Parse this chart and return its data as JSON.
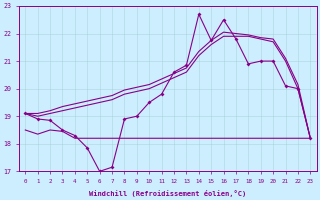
{
  "xlabel": "Windchill (Refroidissement éolien,°C)",
  "bg_color": "#cceeff",
  "line_color": "#880088",
  "xlim": [
    -0.5,
    23.5
  ],
  "ylim": [
    17,
    23
  ],
  "yticks": [
    17,
    18,
    19,
    20,
    21,
    22,
    23
  ],
  "xticks": [
    0,
    1,
    2,
    3,
    4,
    5,
    6,
    7,
    8,
    9,
    10,
    11,
    12,
    13,
    14,
    15,
    16,
    17,
    18,
    19,
    20,
    21,
    22,
    23
  ],
  "s1_x": [
    0,
    1,
    2,
    3,
    4,
    5,
    6,
    7,
    8,
    9,
    10,
    11,
    12,
    13,
    14,
    15,
    16,
    17,
    18,
    19,
    20,
    21,
    22,
    23
  ],
  "s1_y": [
    19.1,
    18.9,
    18.85,
    18.5,
    18.3,
    17.85,
    17.0,
    17.15,
    18.9,
    19.0,
    19.5,
    19.8,
    20.6,
    20.85,
    22.7,
    21.75,
    22.5,
    21.8,
    20.9,
    21.0,
    21.0,
    20.1,
    20.0,
    18.2
  ],
  "s2_x": [
    0,
    1,
    2,
    3,
    4,
    5,
    6,
    7,
    8,
    9,
    10,
    11,
    12,
    13,
    14,
    15,
    16,
    17,
    18,
    19,
    20,
    21,
    22,
    23
  ],
  "s2_y": [
    19.1,
    19.0,
    19.1,
    19.2,
    19.3,
    19.4,
    19.5,
    19.6,
    19.8,
    19.9,
    20.0,
    20.2,
    20.4,
    20.6,
    21.2,
    21.6,
    21.9,
    21.9,
    21.9,
    21.8,
    21.7,
    21.0,
    20.0,
    18.2
  ],
  "s3_x": [
    0,
    1,
    2,
    3,
    4,
    5,
    6,
    7,
    8,
    9,
    10,
    11,
    12,
    13,
    14,
    15,
    16,
    17,
    18,
    19,
    20,
    21,
    22,
    23
  ],
  "s3_y": [
    19.1,
    19.1,
    19.2,
    19.35,
    19.45,
    19.55,
    19.65,
    19.75,
    19.95,
    20.05,
    20.15,
    20.35,
    20.55,
    20.75,
    21.35,
    21.75,
    22.05,
    22.0,
    21.95,
    21.85,
    21.8,
    21.1,
    20.15,
    18.2
  ],
  "s4_x": [
    0,
    1,
    2,
    3,
    4,
    5,
    6,
    7,
    8,
    9,
    10,
    11,
    12,
    13,
    14,
    15,
    16,
    17,
    18,
    19,
    20,
    21,
    22,
    23
  ],
  "s4_y": [
    18.5,
    18.35,
    18.5,
    18.45,
    18.2,
    18.2,
    18.2,
    18.2,
    18.2,
    18.2,
    18.2,
    18.2,
    18.2,
    18.2,
    18.2,
    18.2,
    18.2,
    18.2,
    18.2,
    18.2,
    18.2,
    18.2,
    18.2,
    18.2
  ]
}
